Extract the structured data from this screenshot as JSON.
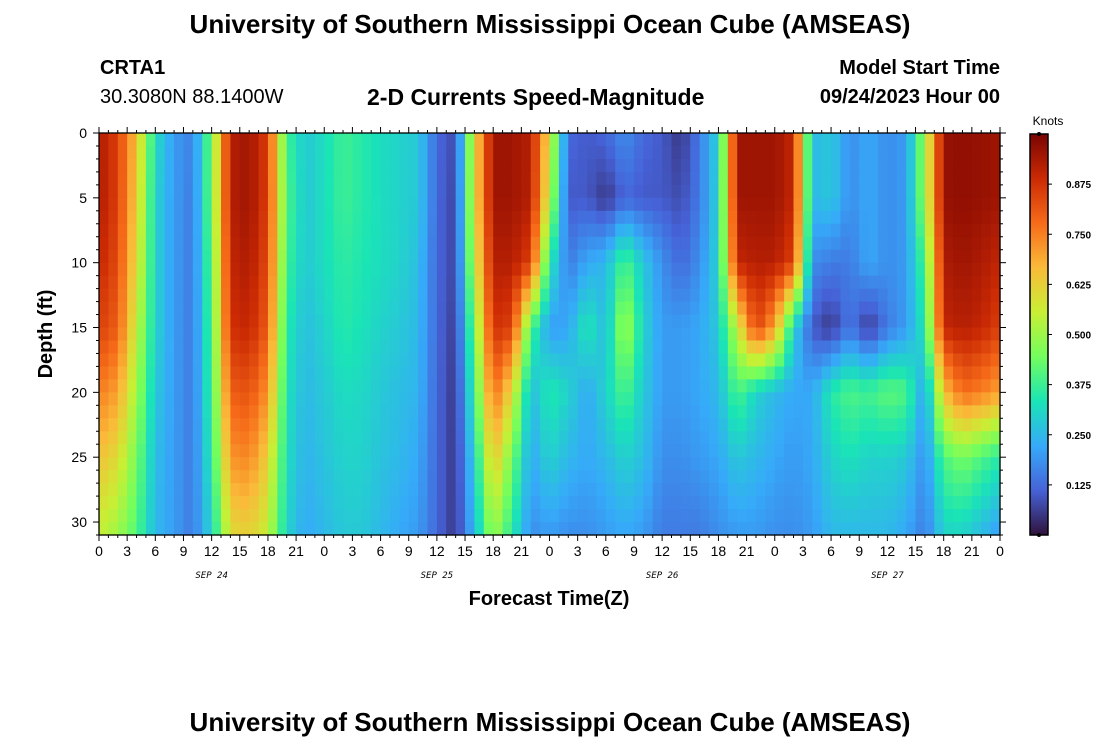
{
  "header": {
    "main_title": "University of Southern Mississippi Ocean Cube (AMSEAS)",
    "station_id": "CRTA1",
    "station_coords": "30.3080N  88.1400W",
    "plot_title": "2-D Currents Speed-Magnitude",
    "model_start_label": "Model Start Time",
    "model_start_value": "09/24/2023 Hour 00"
  },
  "footer": {
    "title": "University of Southern Mississippi Ocean Cube (AMSEAS)"
  },
  "chart_data": {
    "type": "heatmap",
    "xlabel": "Forecast Time(Z)",
    "ylabel": "Depth (ft)",
    "x_hours": [
      0,
      96
    ],
    "x_tick_labels": [
      "0",
      "3",
      "6",
      "9",
      "12",
      "15",
      "18",
      "21",
      "0",
      "3",
      "6",
      "9",
      "12",
      "15",
      "18",
      "21",
      "0",
      "3",
      "6",
      "9",
      "12",
      "15",
      "18",
      "21",
      "0",
      "3",
      "6",
      "9",
      "12",
      "15",
      "18",
      "21",
      "0"
    ],
    "date_labels": [
      "SEP 24",
      "SEP 25",
      "SEP 26",
      "SEP 27"
    ],
    "ylim": [
      0,
      31
    ],
    "y_ticks": [
      0,
      5,
      10,
      15,
      20,
      25,
      30
    ],
    "y_tick_labels": [
      "0",
      "5",
      "10",
      "15",
      "20",
      "25",
      "30"
    ],
    "y_inverted": true,
    "colorbar": {
      "units": "Knots",
      "range": [
        0,
        1
      ],
      "tick_values": [
        0.125,
        0.25,
        0.375,
        0.5,
        0.625,
        0.75,
        0.875
      ],
      "tick_labels": [
        "0.125",
        "0.250",
        "0.375",
        "0.500",
        "0.625",
        "0.750",
        "0.875"
      ],
      "colormap": "turbo",
      "colors": [
        "#30123b",
        "#4662d7",
        "#36aaf9",
        "#1ae4b6",
        "#72fe5e",
        "#c8ef34",
        "#faba39",
        "#f66b19",
        "#cb2a04",
        "#7a0403"
      ]
    },
    "depths_ft": [
      0,
      5,
      10,
      15,
      20,
      25,
      31
    ],
    "time_hours": [
      0,
      2,
      4,
      6,
      8,
      10,
      12,
      14,
      16,
      18,
      20,
      22,
      24,
      26,
      28,
      30,
      32,
      34,
      36,
      38,
      40,
      42,
      44,
      46,
      48,
      50,
      52,
      54,
      56,
      58,
      60,
      62,
      64,
      66,
      68,
      70,
      72,
      74,
      76,
      78,
      80,
      82,
      84,
      86,
      88,
      90,
      92,
      94,
      96
    ],
    "speed_knots": [
      [
        0.93,
        0.85,
        0.65,
        0.32,
        0.2,
        0.16,
        0.45,
        0.92,
        0.95,
        0.85,
        0.38,
        0.28,
        0.32,
        0.38,
        0.35,
        0.32,
        0.3,
        0.28,
        0.12,
        0.08,
        0.6,
        0.95,
        0.95,
        0.92,
        0.6,
        0.12,
        0.1,
        0.12,
        0.18,
        0.12,
        0.1,
        0.05,
        0.15,
        0.3,
        0.95,
        0.95,
        0.95,
        0.9,
        0.25,
        0.28,
        0.18,
        0.22,
        0.18,
        0.2,
        0.5,
        0.96,
        0.97,
        0.96,
        0.95
      ],
      [
        0.93,
        0.85,
        0.63,
        0.3,
        0.2,
        0.15,
        0.45,
        0.92,
        0.95,
        0.85,
        0.4,
        0.28,
        0.32,
        0.38,
        0.35,
        0.32,
        0.3,
        0.28,
        0.12,
        0.07,
        0.6,
        0.95,
        0.95,
        0.92,
        0.55,
        0.1,
        0.1,
        0.05,
        0.12,
        0.1,
        0.1,
        0.08,
        0.15,
        0.3,
        0.95,
        0.95,
        0.95,
        0.9,
        0.25,
        0.28,
        0.18,
        0.22,
        0.18,
        0.2,
        0.5,
        0.96,
        0.97,
        0.96,
        0.95
      ],
      [
        0.9,
        0.83,
        0.6,
        0.3,
        0.2,
        0.15,
        0.42,
        0.9,
        0.93,
        0.83,
        0.38,
        0.28,
        0.32,
        0.36,
        0.34,
        0.32,
        0.3,
        0.26,
        0.12,
        0.07,
        0.55,
        0.92,
        0.92,
        0.85,
        0.35,
        0.15,
        0.22,
        0.25,
        0.4,
        0.28,
        0.18,
        0.12,
        0.18,
        0.3,
        0.9,
        0.92,
        0.92,
        0.85,
        0.18,
        0.15,
        0.15,
        0.22,
        0.18,
        0.2,
        0.4,
        0.93,
        0.95,
        0.93,
        0.9
      ],
      [
        0.85,
        0.8,
        0.55,
        0.3,
        0.2,
        0.15,
        0.4,
        0.88,
        0.9,
        0.8,
        0.35,
        0.26,
        0.3,
        0.35,
        0.33,
        0.3,
        0.28,
        0.25,
        0.12,
        0.06,
        0.45,
        0.88,
        0.85,
        0.4,
        0.2,
        0.22,
        0.35,
        0.25,
        0.52,
        0.3,
        0.2,
        0.2,
        0.22,
        0.28,
        0.55,
        0.85,
        0.7,
        0.3,
        0.1,
        0.05,
        0.15,
        0.05,
        0.15,
        0.2,
        0.35,
        0.9,
        0.92,
        0.9,
        0.85
      ],
      [
        0.75,
        0.7,
        0.5,
        0.28,
        0.2,
        0.15,
        0.38,
        0.8,
        0.82,
        0.72,
        0.33,
        0.25,
        0.28,
        0.32,
        0.31,
        0.28,
        0.26,
        0.24,
        0.12,
        0.05,
        0.38,
        0.78,
        0.6,
        0.25,
        0.35,
        0.3,
        0.22,
        0.3,
        0.4,
        0.28,
        0.2,
        0.2,
        0.22,
        0.25,
        0.4,
        0.3,
        0.25,
        0.22,
        0.22,
        0.35,
        0.4,
        0.38,
        0.42,
        0.4,
        0.2,
        0.65,
        0.78,
        0.75,
        0.7
      ],
      [
        0.65,
        0.6,
        0.45,
        0.26,
        0.2,
        0.15,
        0.35,
        0.72,
        0.74,
        0.62,
        0.32,
        0.24,
        0.27,
        0.3,
        0.3,
        0.27,
        0.25,
        0.22,
        0.12,
        0.05,
        0.3,
        0.65,
        0.45,
        0.22,
        0.3,
        0.25,
        0.22,
        0.25,
        0.3,
        0.26,
        0.18,
        0.18,
        0.2,
        0.22,
        0.28,
        0.25,
        0.22,
        0.2,
        0.22,
        0.3,
        0.33,
        0.3,
        0.3,
        0.28,
        0.18,
        0.4,
        0.45,
        0.4,
        0.35
      ],
      [
        0.55,
        0.5,
        0.4,
        0.25,
        0.2,
        0.15,
        0.3,
        0.6,
        0.62,
        0.55,
        0.3,
        0.22,
        0.25,
        0.28,
        0.28,
        0.25,
        0.22,
        0.2,
        0.12,
        0.05,
        0.25,
        0.5,
        0.35,
        0.18,
        0.2,
        0.18,
        0.18,
        0.2,
        0.22,
        0.2,
        0.15,
        0.15,
        0.15,
        0.18,
        0.2,
        0.2,
        0.18,
        0.18,
        0.2,
        0.25,
        0.25,
        0.25,
        0.25,
        0.22,
        0.15,
        0.3,
        0.3,
        0.25,
        0.2
      ]
    ]
  }
}
